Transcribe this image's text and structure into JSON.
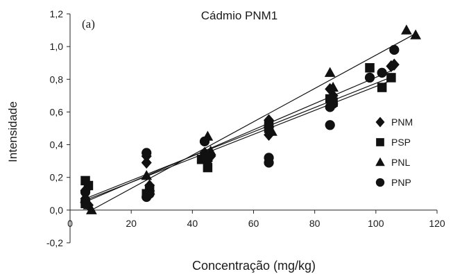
{
  "chart_data": {
    "type": "scatter",
    "title": "Cádmio PNM1",
    "panel_label": "(a)",
    "xlabel": "Concentração (mg/kg)",
    "ylabel": "Intensidade",
    "xlim": [
      0,
      120
    ],
    "ylim": [
      -0.2,
      1.2
    ],
    "xticks": [
      "0",
      "20",
      "40",
      "60",
      "80",
      "100",
      "120"
    ],
    "yticks": [
      "-0,2",
      "0,0",
      "0,2",
      "0,4",
      "0,6",
      "0,8",
      "1,0",
      "1,2"
    ],
    "grid": false,
    "legend_position": "right",
    "series": [
      {
        "name": "PNM",
        "marker": "diamond",
        "points": [
          [
            5,
            0.12
          ],
          [
            5,
            0.07
          ],
          [
            6,
            0.03
          ],
          [
            25,
            0.33
          ],
          [
            25,
            0.29
          ],
          [
            26,
            0.15
          ],
          [
            44,
            0.35
          ],
          [
            45,
            0.3
          ],
          [
            46,
            0.33
          ],
          [
            65,
            0.55
          ],
          [
            65,
            0.46
          ],
          [
            85,
            0.74
          ],
          [
            86,
            0.7
          ],
          [
            105,
            0.88
          ],
          [
            106,
            0.89
          ]
        ],
        "fit": [
          [
            5,
            0.05
          ],
          [
            106,
            0.86
          ]
        ]
      },
      {
        "name": "PSP",
        "marker": "square",
        "points": [
          [
            5,
            0.18
          ],
          [
            5,
            0.04
          ],
          [
            6,
            0.15
          ],
          [
            25,
            0.1
          ],
          [
            26,
            0.13
          ],
          [
            43,
            0.31
          ],
          [
            44,
            0.33
          ],
          [
            45,
            0.26
          ],
          [
            65,
            0.52
          ],
          [
            65,
            0.5
          ],
          [
            85,
            0.68
          ],
          [
            86,
            0.66
          ],
          [
            98,
            0.87
          ],
          [
            102,
            0.75
          ],
          [
            105,
            0.81
          ]
        ],
        "fit": [
          [
            5,
            0.07
          ],
          [
            106,
            0.82
          ]
        ]
      },
      {
        "name": "PNL",
        "marker": "triangle",
        "points": [
          [
            5,
            0.07
          ],
          [
            6,
            0.03
          ],
          [
            7,
            0.0
          ],
          [
            25,
            0.21
          ],
          [
            26,
            0.14
          ],
          [
            26,
            0.12
          ],
          [
            45,
            0.45
          ],
          [
            46,
            0.36
          ],
          [
            65,
            0.53
          ],
          [
            66,
            0.48
          ],
          [
            85,
            0.84
          ],
          [
            86,
            0.75
          ],
          [
            110,
            1.1
          ],
          [
            113,
            1.07
          ]
        ],
        "fit": [
          [
            7,
            0.0
          ],
          [
            113,
            1.08
          ]
        ]
      },
      {
        "name": "PNP",
        "marker": "circle",
        "points": [
          [
            5,
            0.11
          ],
          [
            5,
            0.05
          ],
          [
            25,
            0.35
          ],
          [
            25,
            0.08
          ],
          [
            26,
            0.1
          ],
          [
            44,
            0.42
          ],
          [
            65,
            0.29
          ],
          [
            65,
            0.32
          ],
          [
            85,
            0.52
          ],
          [
            85,
            0.63
          ],
          [
            86,
            0.65
          ],
          [
            98,
            0.81
          ],
          [
            102,
            0.84
          ],
          [
            106,
            0.98
          ]
        ],
        "fit": [
          [
            5,
            0.06
          ],
          [
            106,
            0.8
          ]
        ]
      }
    ]
  }
}
